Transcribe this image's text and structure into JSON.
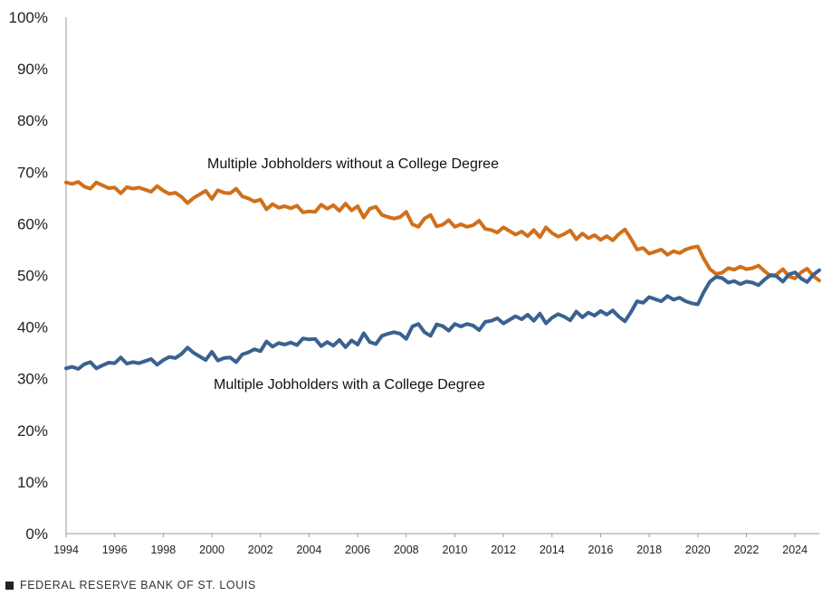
{
  "chart_data": {
    "type": "line",
    "title": "",
    "xlabel": "",
    "ylabel": "",
    "xlim": [
      1994,
      2025
    ],
    "ylim": [
      0,
      100
    ],
    "y_ticks": [
      "0%",
      "10%",
      "20%",
      "30%",
      "40%",
      "50%",
      "60%",
      "70%",
      "80%",
      "90%",
      "100%"
    ],
    "x_ticks": [
      "1994",
      "1996",
      "1998",
      "2000",
      "2002",
      "2004",
      "2006",
      "2008",
      "2010",
      "2012",
      "2014",
      "2016",
      "2018",
      "2020",
      "2022",
      "2024"
    ],
    "grid": false,
    "series": [
      {
        "name": "Multiple Jobholders without a College Degree",
        "color": "#D0701A",
        "points": [
          [
            1994.0,
            68.0
          ],
          [
            1994.25,
            67.7
          ],
          [
            1994.5,
            68.1
          ],
          [
            1994.75,
            67.2
          ],
          [
            1995.0,
            66.8
          ],
          [
            1995.25,
            68.0
          ],
          [
            1995.5,
            67.4
          ],
          [
            1995.75,
            66.9
          ],
          [
            1996.0,
            67.0
          ],
          [
            1996.25,
            65.9
          ],
          [
            1996.5,
            67.1
          ],
          [
            1996.75,
            66.8
          ],
          [
            1997.0,
            67.0
          ],
          [
            1997.25,
            66.6
          ],
          [
            1997.5,
            66.2
          ],
          [
            1997.75,
            67.3
          ],
          [
            1998.0,
            66.4
          ],
          [
            1998.25,
            65.8
          ],
          [
            1998.5,
            66.0
          ],
          [
            1998.75,
            65.2
          ],
          [
            1999.0,
            64.0
          ],
          [
            1999.25,
            65.0
          ],
          [
            1999.5,
            65.7
          ],
          [
            1999.75,
            66.4
          ],
          [
            2000.0,
            64.8
          ],
          [
            2000.25,
            66.5
          ],
          [
            2000.5,
            66.0
          ],
          [
            2000.75,
            65.9
          ],
          [
            2001.0,
            66.8
          ],
          [
            2001.25,
            65.3
          ],
          [
            2001.5,
            64.9
          ],
          [
            2001.75,
            64.3
          ],
          [
            2002.0,
            64.7
          ],
          [
            2002.25,
            62.8
          ],
          [
            2002.5,
            63.8
          ],
          [
            2002.75,
            63.1
          ],
          [
            2003.0,
            63.4
          ],
          [
            2003.25,
            63.0
          ],
          [
            2003.5,
            63.5
          ],
          [
            2003.75,
            62.2
          ],
          [
            2004.0,
            62.4
          ],
          [
            2004.25,
            62.3
          ],
          [
            2004.5,
            63.7
          ],
          [
            2004.75,
            62.9
          ],
          [
            2005.0,
            63.6
          ],
          [
            2005.25,
            62.5
          ],
          [
            2005.5,
            63.9
          ],
          [
            2005.75,
            62.6
          ],
          [
            2006.0,
            63.4
          ],
          [
            2006.25,
            61.2
          ],
          [
            2006.5,
            62.9
          ],
          [
            2006.75,
            63.3
          ],
          [
            2007.0,
            61.7
          ],
          [
            2007.25,
            61.3
          ],
          [
            2007.5,
            61.0
          ],
          [
            2007.75,
            61.3
          ],
          [
            2008.0,
            62.3
          ],
          [
            2008.25,
            59.9
          ],
          [
            2008.5,
            59.4
          ],
          [
            2008.75,
            61.0
          ],
          [
            2009.0,
            61.7
          ],
          [
            2009.25,
            59.5
          ],
          [
            2009.5,
            59.8
          ],
          [
            2009.75,
            60.7
          ],
          [
            2010.0,
            59.4
          ],
          [
            2010.25,
            59.9
          ],
          [
            2010.5,
            59.4
          ],
          [
            2010.75,
            59.7
          ],
          [
            2011.0,
            60.6
          ],
          [
            2011.25,
            59.0
          ],
          [
            2011.5,
            58.8
          ],
          [
            2011.75,
            58.3
          ],
          [
            2012.0,
            59.3
          ],
          [
            2012.25,
            58.6
          ],
          [
            2012.5,
            57.9
          ],
          [
            2012.75,
            58.5
          ],
          [
            2013.0,
            57.6
          ],
          [
            2013.25,
            58.8
          ],
          [
            2013.5,
            57.4
          ],
          [
            2013.75,
            59.3
          ],
          [
            2014.0,
            58.2
          ],
          [
            2014.25,
            57.5
          ],
          [
            2014.5,
            58.0
          ],
          [
            2014.75,
            58.7
          ],
          [
            2015.0,
            57.0
          ],
          [
            2015.25,
            58.1
          ],
          [
            2015.5,
            57.2
          ],
          [
            2015.75,
            57.8
          ],
          [
            2016.0,
            56.9
          ],
          [
            2016.25,
            57.6
          ],
          [
            2016.5,
            56.8
          ],
          [
            2016.75,
            58.0
          ],
          [
            2017.0,
            58.9
          ],
          [
            2017.25,
            57.1
          ],
          [
            2017.5,
            55.0
          ],
          [
            2017.75,
            55.3
          ],
          [
            2018.0,
            54.2
          ],
          [
            2018.25,
            54.6
          ],
          [
            2018.5,
            55.0
          ],
          [
            2018.75,
            54.0
          ],
          [
            2019.0,
            54.7
          ],
          [
            2019.25,
            54.3
          ],
          [
            2019.5,
            55.0
          ],
          [
            2019.75,
            55.4
          ],
          [
            2020.0,
            55.6
          ],
          [
            2020.25,
            53.2
          ],
          [
            2020.5,
            51.2
          ],
          [
            2020.75,
            50.3
          ],
          [
            2021.0,
            50.5
          ],
          [
            2021.25,
            51.4
          ],
          [
            2021.5,
            51.1
          ],
          [
            2021.75,
            51.7
          ],
          [
            2022.0,
            51.2
          ],
          [
            2022.25,
            51.4
          ],
          [
            2022.5,
            51.9
          ],
          [
            2022.75,
            50.8
          ],
          [
            2023.0,
            49.9
          ],
          [
            2023.25,
            50.2
          ],
          [
            2023.5,
            51.2
          ],
          [
            2023.75,
            49.8
          ],
          [
            2024.0,
            49.4
          ],
          [
            2024.25,
            50.6
          ],
          [
            2024.5,
            51.3
          ],
          [
            2024.75,
            49.9
          ],
          [
            2025.0,
            49.0
          ]
        ]
      },
      {
        "name": "Multiple Jobholders with a College Degree",
        "color": "#3A6190",
        "points": [
          [
            1994.0,
            32.0
          ],
          [
            1994.25,
            32.3
          ],
          [
            1994.5,
            31.9
          ],
          [
            1994.75,
            32.8
          ],
          [
            1995.0,
            33.2
          ],
          [
            1995.25,
            32.0
          ],
          [
            1995.5,
            32.6
          ],
          [
            1995.75,
            33.1
          ],
          [
            1996.0,
            33.0
          ],
          [
            1996.25,
            34.1
          ],
          [
            1996.5,
            32.9
          ],
          [
            1996.75,
            33.2
          ],
          [
            1997.0,
            33.0
          ],
          [
            1997.25,
            33.4
          ],
          [
            1997.5,
            33.8
          ],
          [
            1997.75,
            32.7
          ],
          [
            1998.0,
            33.6
          ],
          [
            1998.25,
            34.2
          ],
          [
            1998.5,
            34.0
          ],
          [
            1998.75,
            34.8
          ],
          [
            1999.0,
            36.0
          ],
          [
            1999.25,
            35.0
          ],
          [
            1999.5,
            34.3
          ],
          [
            1999.75,
            33.6
          ],
          [
            2000.0,
            35.2
          ],
          [
            2000.25,
            33.5
          ],
          [
            2000.5,
            34.0
          ],
          [
            2000.75,
            34.1
          ],
          [
            2001.0,
            33.2
          ],
          [
            2001.25,
            34.7
          ],
          [
            2001.5,
            35.1
          ],
          [
            2001.75,
            35.7
          ],
          [
            2002.0,
            35.3
          ],
          [
            2002.25,
            37.2
          ],
          [
            2002.5,
            36.2
          ],
          [
            2002.75,
            36.9
          ],
          [
            2003.0,
            36.6
          ],
          [
            2003.25,
            37.0
          ],
          [
            2003.5,
            36.5
          ],
          [
            2003.75,
            37.8
          ],
          [
            2004.0,
            37.6
          ],
          [
            2004.25,
            37.7
          ],
          [
            2004.5,
            36.3
          ],
          [
            2004.75,
            37.1
          ],
          [
            2005.0,
            36.4
          ],
          [
            2005.25,
            37.5
          ],
          [
            2005.5,
            36.1
          ],
          [
            2005.75,
            37.4
          ],
          [
            2006.0,
            36.6
          ],
          [
            2006.25,
            38.8
          ],
          [
            2006.5,
            37.1
          ],
          [
            2006.75,
            36.7
          ],
          [
            2007.0,
            38.3
          ],
          [
            2007.25,
            38.7
          ],
          [
            2007.5,
            39.0
          ],
          [
            2007.75,
            38.7
          ],
          [
            2008.0,
            37.7
          ],
          [
            2008.25,
            40.1
          ],
          [
            2008.5,
            40.6
          ],
          [
            2008.75,
            39.0
          ],
          [
            2009.0,
            38.3
          ],
          [
            2009.25,
            40.5
          ],
          [
            2009.5,
            40.2
          ],
          [
            2009.75,
            39.3
          ],
          [
            2010.0,
            40.6
          ],
          [
            2010.25,
            40.1
          ],
          [
            2010.5,
            40.6
          ],
          [
            2010.75,
            40.3
          ],
          [
            2011.0,
            39.4
          ],
          [
            2011.25,
            41.0
          ],
          [
            2011.5,
            41.2
          ],
          [
            2011.75,
            41.7
          ],
          [
            2012.0,
            40.7
          ],
          [
            2012.25,
            41.4
          ],
          [
            2012.5,
            42.1
          ],
          [
            2012.75,
            41.5
          ],
          [
            2013.0,
            42.4
          ],
          [
            2013.25,
            41.2
          ],
          [
            2013.5,
            42.6
          ],
          [
            2013.75,
            40.7
          ],
          [
            2014.0,
            41.8
          ],
          [
            2014.25,
            42.5
          ],
          [
            2014.5,
            42.0
          ],
          [
            2014.75,
            41.3
          ],
          [
            2015.0,
            43.0
          ],
          [
            2015.25,
            41.9
          ],
          [
            2015.5,
            42.8
          ],
          [
            2015.75,
            42.2
          ],
          [
            2016.0,
            43.1
          ],
          [
            2016.25,
            42.4
          ],
          [
            2016.5,
            43.2
          ],
          [
            2016.75,
            42.0
          ],
          [
            2017.0,
            41.1
          ],
          [
            2017.25,
            42.9
          ],
          [
            2017.5,
            45.0
          ],
          [
            2017.75,
            44.7
          ],
          [
            2018.0,
            45.8
          ],
          [
            2018.25,
            45.4
          ],
          [
            2018.5,
            45.0
          ],
          [
            2018.75,
            46.0
          ],
          [
            2019.0,
            45.3
          ],
          [
            2019.25,
            45.7
          ],
          [
            2019.5,
            45.0
          ],
          [
            2019.75,
            44.6
          ],
          [
            2020.0,
            44.4
          ],
          [
            2020.25,
            46.8
          ],
          [
            2020.5,
            48.8
          ],
          [
            2020.75,
            49.7
          ],
          [
            2021.0,
            49.5
          ],
          [
            2021.25,
            48.6
          ],
          [
            2021.5,
            48.9
          ],
          [
            2021.75,
            48.3
          ],
          [
            2022.0,
            48.8
          ],
          [
            2022.25,
            48.6
          ],
          [
            2022.5,
            48.1
          ],
          [
            2022.75,
            49.2
          ],
          [
            2023.0,
            50.1
          ],
          [
            2023.25,
            49.8
          ],
          [
            2023.5,
            48.8
          ],
          [
            2023.75,
            50.2
          ],
          [
            2024.0,
            50.6
          ],
          [
            2024.25,
            49.4
          ],
          [
            2024.5,
            48.7
          ],
          [
            2024.75,
            50.1
          ],
          [
            2025.0,
            51.0
          ]
        ]
      }
    ],
    "annotations": [
      {
        "text": "Multiple Jobholders without a College Degree",
        "series": 0
      },
      {
        "text": "Multiple Jobholders with a College Degree",
        "series": 1
      }
    ]
  },
  "footer": {
    "source": "FEDERAL RESERVE BANK OF ST. LOUIS"
  }
}
